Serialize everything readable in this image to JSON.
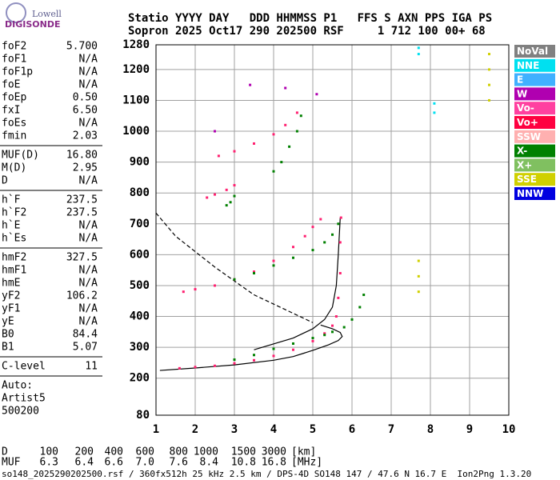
{
  "logo": {
    "top": "Lowell",
    "bottom": "DIGISONDE"
  },
  "header": {
    "line1": "Statio YYYY DAY   DDD HHMMSS P1   FFS S AXN PPS IGA PS",
    "line2": "Sopron 2025 Oct17 290 202500 RSF     1 712 100 00+ 68"
  },
  "params": [
    [
      [
        "foF2",
        "5.700"
      ],
      [
        "foF1",
        "N/A"
      ],
      [
        "foF1p",
        "N/A"
      ],
      [
        "foE",
        "N/A"
      ],
      [
        "foEp",
        "0.50"
      ],
      [
        "fxI",
        "6.50"
      ],
      [
        "foEs",
        "N/A"
      ],
      [
        "fmin",
        "2.03"
      ]
    ],
    [
      [
        "MUF(D)",
        "16.80"
      ],
      [
        "M(D)",
        "2.95"
      ],
      [
        "D",
        "N/A"
      ]
    ],
    [
      [
        "h`F",
        "237.5"
      ],
      [
        "h`F2",
        "237.5"
      ],
      [
        "h`E",
        "N/A"
      ],
      [
        "h`Es",
        "N/A"
      ]
    ],
    [
      [
        "hmF2",
        "327.5"
      ],
      [
        "hmF1",
        "N/A"
      ],
      [
        "hmE",
        "N/A"
      ],
      [
        "yF2",
        "106.2"
      ],
      [
        "yF1",
        "N/A"
      ],
      [
        "yE",
        "N/A"
      ],
      [
        "B0",
        "84.4"
      ],
      [
        "B1",
        "5.07"
      ]
    ],
    [
      [
        "C-level",
        "11"
      ]
    ]
  ],
  "auto": [
    "Auto:",
    "Artist5",
    "500200"
  ],
  "chart_data": {
    "type": "scatter",
    "xlim": [
      1,
      10
    ],
    "ylim": [
      80,
      1280
    ],
    "xticks": [
      1,
      2,
      3,
      4,
      5,
      6,
      7,
      8,
      9,
      10
    ],
    "yticks": [
      80,
      200,
      300,
      400,
      500,
      600,
      700,
      800,
      900,
      1000,
      1100,
      1200,
      1280
    ],
    "grid": true,
    "legend": [
      {
        "name": "NoVal",
        "color": "#808080"
      },
      {
        "name": "NNE",
        "color": "#00e0f0"
      },
      {
        "name": "E",
        "color": "#40b0ff"
      },
      {
        "name": "W",
        "color": "#b000b0"
      },
      {
        "name": "Vo-",
        "color": "#ff40a0"
      },
      {
        "name": "Vo+",
        "color": "#ff0040"
      },
      {
        "name": "SSW",
        "color": "#ffb0b0"
      },
      {
        "name": "X-",
        "color": "#008000"
      },
      {
        "name": "X+",
        "color": "#80c060"
      },
      {
        "name": "SSE",
        "color": "#d0d000"
      },
      {
        "name": "NNW",
        "color": "#0000e0"
      }
    ],
    "series": [
      {
        "color": "#ff2070",
        "x": [
          1.6,
          2,
          2.5,
          3,
          3.5,
          4,
          4.5,
          5,
          5.3,
          5.5,
          5.6,
          5.65,
          5.7,
          5.7,
          5.72
        ],
        "y": [
          232,
          236,
          240,
          248,
          258,
          272,
          292,
          320,
          345,
          370,
          400,
          460,
          540,
          640,
          720
        ]
      },
      {
        "color": "#ff2070",
        "x": [
          1.7,
          2,
          2.5,
          3,
          3.5,
          4,
          4.5,
          4.8,
          5,
          5.2
        ],
        "y": [
          480,
          488,
          500,
          520,
          545,
          580,
          625,
          660,
          690,
          715
        ]
      },
      {
        "color": "#ff2070",
        "x": [
          2.3,
          2.5,
          2.8,
          3
        ],
        "y": [
          785,
          795,
          810,
          825
        ]
      },
      {
        "color": "#ff2070",
        "x": [
          2.6,
          3,
          3.5,
          4,
          4.3,
          4.6
        ],
        "y": [
          920,
          935,
          960,
          990,
          1020,
          1060
        ]
      },
      {
        "color": "#008000",
        "x": [
          3,
          3.5,
          4,
          4.5,
          5,
          5.3,
          5.5,
          5.8,
          6,
          6.2,
          6.3
        ],
        "y": [
          260,
          275,
          295,
          312,
          330,
          340,
          350,
          365,
          390,
          430,
          470
        ]
      },
      {
        "color": "#008000",
        "x": [
          3,
          3.5,
          4,
          4.5,
          5,
          5.3,
          5.5,
          5.65
        ],
        "y": [
          520,
          540,
          565,
          590,
          615,
          640,
          665,
          700
        ]
      },
      {
        "color": "#008000",
        "x": [
          2.8,
          2.9,
          3
        ],
        "y": [
          760,
          770,
          790
        ]
      },
      {
        "color": "#008000",
        "x": [
          4,
          4.2,
          4.4,
          4.6,
          4.7
        ],
        "y": [
          870,
          900,
          950,
          1000,
          1050
        ]
      },
      {
        "color": "#d0d000",
        "x": [
          9.5,
          9.5,
          9.5,
          9.5,
          7.7,
          7.7,
          7.7
        ],
        "y": [
          1100,
          1150,
          1200,
          1250,
          480,
          530,
          580
        ]
      },
      {
        "color": "#00e0f0",
        "x": [
          8.1,
          8.1,
          7.7,
          7.7
        ],
        "y": [
          1060,
          1090,
          1250,
          1270
        ]
      },
      {
        "color": "#b000b0",
        "x": [
          3.4,
          4.3,
          5.1,
          2.5
        ],
        "y": [
          1150,
          1140,
          1120,
          1000
        ]
      }
    ],
    "curves": [
      {
        "color": "#000000",
        "dash": false,
        "x": [
          1.1,
          2,
          3,
          4,
          4.5,
          5,
          5.4,
          5.65,
          5.75,
          5.7,
          5.5,
          5.2
        ],
        "y": [
          225,
          233,
          243,
          258,
          270,
          290,
          308,
          322,
          335,
          348,
          360,
          372
        ]
      },
      {
        "color": "#000000",
        "dash": false,
        "x": [
          3.5,
          4.5,
          5,
          5.3,
          5.5,
          5.6,
          5.65,
          5.7
        ],
        "y": [
          292,
          330,
          360,
          390,
          430,
          500,
          600,
          720
        ]
      },
      {
        "color": "#000000",
        "dash": true,
        "x": [
          1,
          1.5,
          2,
          2.5,
          3,
          3.5,
          4,
          4.5,
          5
        ],
        "y": [
          735,
          660,
          610,
          560,
          515,
          470,
          440,
          410,
          380
        ]
      }
    ]
  },
  "footer": {
    "rows": [
      {
        "label": "D",
        "values": [
          "100",
          "200",
          "400",
          "600",
          "800",
          "1000",
          "1500",
          "3000"
        ],
        "unit": "[km]"
      },
      {
        "label": "MUF",
        "values": [
          "6.3",
          "6.4",
          "6.6",
          "7.0",
          "7.6",
          "8.4",
          "10.8",
          "16.8"
        ],
        "unit": "[MHz]"
      }
    ],
    "file": "so148_2025290202500.rsf / 360fx512h 25 kHz 2.5 km / DPS-4D SO148 147 / 47.6 N 16.7 E  Ion2Png 1.3.20"
  }
}
